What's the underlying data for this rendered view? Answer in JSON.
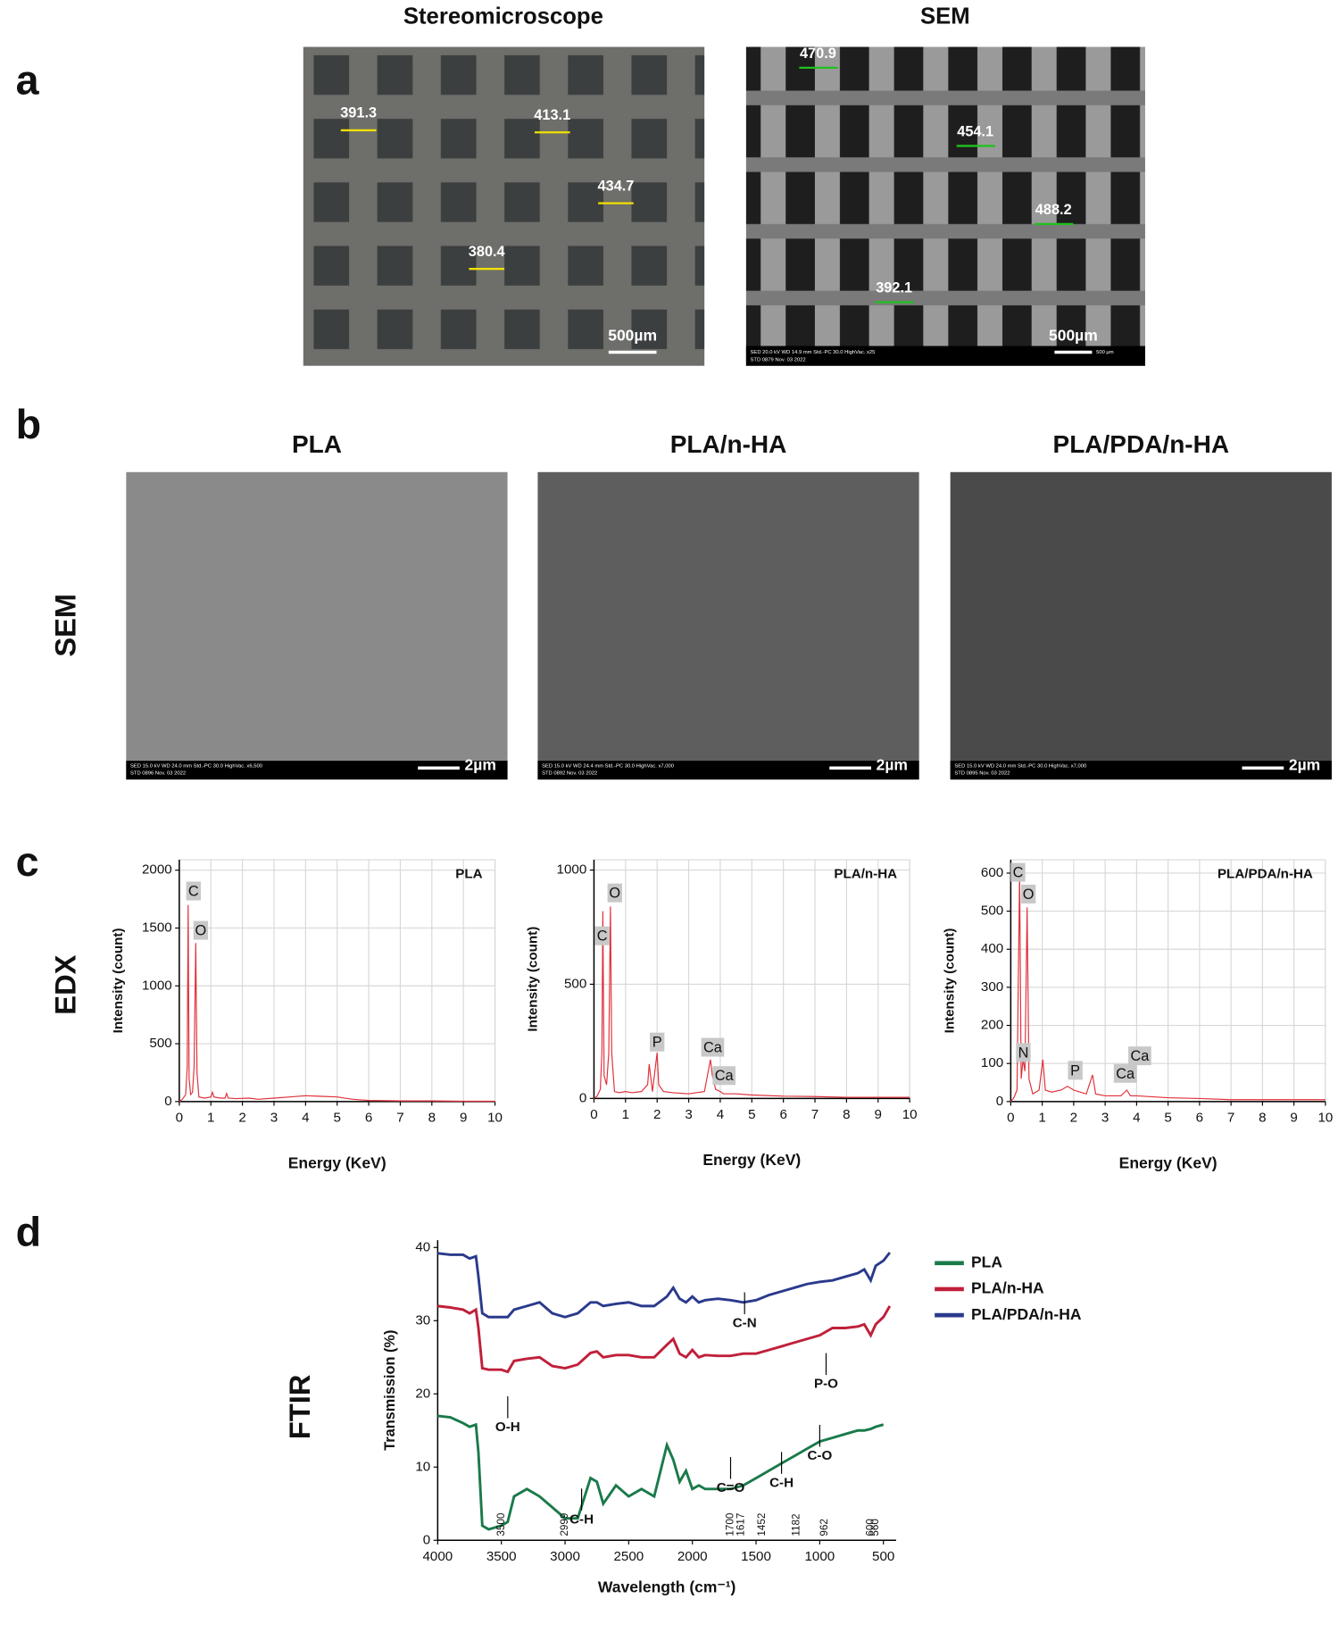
{
  "panel_labels": [
    "a",
    "b",
    "c",
    "d"
  ],
  "stereo": {
    "title": "Stereomicroscope",
    "measurements": [
      391.3,
      413.1,
      434.7,
      380.4
    ],
    "scale_bar": "500µm"
  },
  "sem_a": {
    "title": "SEM",
    "measurements": [
      470.9,
      454.1,
      488.2,
      392.1
    ],
    "scale_bar": "500µm",
    "info": [
      "SED 20.0 kV WD 14.9 mm Std.-PC 30.0 HighVac. x25",
      "STD 0879 Nov. 03 2022"
    ],
    "small_scale": "500 µm"
  },
  "row_b": {
    "row_label": "SEM",
    "columns": [
      {
        "title": "PLA",
        "scale_bar": "2µm",
        "info": [
          "SED 15.0 kV WD 24.0 mm Std.-PC 30.0 HighVac. x6,500",
          "STD 0896 Nov. 03 2022"
        ]
      },
      {
        "title": "PLA/n-HA",
        "scale_bar": "2µm",
        "info": [
          "SED 15.0 kV WD 24.4 mm Std.-PC 30.0 HighVac. x7,000",
          "STD 0892 Nov. 03 2022"
        ]
      },
      {
        "title": "PLA/PDA/n-HA",
        "scale_bar": "2µm",
        "info": [
          "SED 15.0 kV WD 24.0 mm Std.-PC 30.0 HighVac. x7,000",
          "STD 0895 Nov. 03 2022"
        ]
      }
    ]
  },
  "row_c_label": "EDX",
  "row_d_label": "FTIR",
  "chart_data": [
    {
      "type": "line",
      "title": "PLA",
      "x_label": "Energy (KeV)",
      "y_label": "Intensity (count)",
      "color": "#e0303a",
      "grid": true,
      "xlim": [
        0,
        10
      ],
      "ylim": [
        0,
        2090
      ],
      "xticks": [
        0,
        1,
        2,
        3,
        4,
        5,
        6,
        7,
        8,
        9,
        10
      ],
      "yticks": [
        0,
        500,
        1000,
        1500,
        2000
      ],
      "x": [
        0,
        0.1,
        0.2,
        0.25,
        0.28,
        0.31,
        0.36,
        0.42,
        0.47,
        0.52,
        0.56,
        0.62,
        0.8,
        1.0,
        1.05,
        1.1,
        1.3,
        1.45,
        1.5,
        1.55,
        1.8,
        2.2,
        2.5,
        3,
        3.5,
        4,
        4.5,
        5,
        5.5,
        6,
        7,
        8,
        9,
        10
      ],
      "values": [
        0,
        20,
        60,
        300,
        1700,
        200,
        60,
        80,
        300,
        1370,
        250,
        40,
        30,
        40,
        80,
        40,
        30,
        30,
        70,
        30,
        25,
        30,
        20,
        30,
        40,
        50,
        45,
        40,
        20,
        10,
        5,
        5,
        3,
        3
      ],
      "annotations": [
        {
          "text": "C",
          "x": 0.45,
          "y": 1820
        },
        {
          "text": "O",
          "x": 0.68,
          "y": 1480
        }
      ]
    },
    {
      "type": "line",
      "title": "PLA/n-HA",
      "x_label": "Energy (KeV)",
      "y_label": "Intensity (count)",
      "color": "#e0303a",
      "grid": true,
      "xlim": [
        0,
        10
      ],
      "ylim": [
        0,
        1045
      ],
      "xticks": [
        0,
        1,
        2,
        3,
        4,
        5,
        6,
        7,
        8,
        9,
        10
      ],
      "yticks": [
        0,
        500,
        1000
      ],
      "x": [
        0,
        0.1,
        0.2,
        0.25,
        0.28,
        0.32,
        0.4,
        0.47,
        0.52,
        0.56,
        0.65,
        0.8,
        1.0,
        1.2,
        1.5,
        1.7,
        1.75,
        1.85,
        2.0,
        2.05,
        2.2,
        2.5,
        3,
        3.5,
        3.69,
        3.75,
        3.85,
        4.0,
        4.1,
        4.5,
        5,
        6,
        7,
        8,
        9,
        10
      ],
      "values": [
        0,
        10,
        40,
        200,
        820,
        100,
        60,
        200,
        840,
        200,
        30,
        25,
        30,
        25,
        30,
        60,
        150,
        30,
        200,
        60,
        30,
        25,
        20,
        30,
        170,
        100,
        40,
        30,
        20,
        20,
        15,
        10,
        8,
        5,
        5,
        5
      ],
      "annotations": [
        {
          "text": "C",
          "x": 0.26,
          "y": 712
        },
        {
          "text": "O",
          "x": 0.66,
          "y": 900
        },
        {
          "text": "P",
          "x": 2.0,
          "y": 247
        },
        {
          "text": "Ca",
          "x": 3.76,
          "y": 224
        },
        {
          "text": "Ca",
          "x": 4.12,
          "y": 100
        }
      ]
    },
    {
      "type": "line",
      "title": "PLA/PDA/n-HA",
      "x_label": "Energy (KeV)",
      "y_label": "Intensity (count)",
      "color": "#e0303a",
      "grid": true,
      "xlim": [
        0,
        10
      ],
      "ylim": [
        0,
        635
      ],
      "xticks": [
        0,
        1,
        2,
        3,
        4,
        5,
        6,
        7,
        8,
        9,
        10
      ],
      "yticks": [
        0,
        100,
        200,
        300,
        400,
        500,
        600
      ],
      "x": [
        0,
        0.1,
        0.2,
        0.28,
        0.33,
        0.39,
        0.45,
        0.52,
        0.58,
        0.7,
        0.9,
        1.02,
        1.1,
        1.3,
        1.6,
        1.8,
        2.0,
        2.2,
        2.4,
        2.6,
        2.7,
        3,
        3.5,
        3.69,
        3.8,
        4,
        5,
        6,
        7,
        8,
        9,
        10
      ],
      "values": [
        0,
        10,
        30,
        600,
        60,
        110,
        80,
        510,
        60,
        20,
        30,
        110,
        30,
        25,
        30,
        40,
        30,
        25,
        20,
        70,
        20,
        15,
        15,
        30,
        15,
        15,
        10,
        8,
        5,
        5,
        5,
        5
      ],
      "annotations": [
        {
          "text": "C",
          "x": 0.23,
          "y": 602
        },
        {
          "text": "O",
          "x": 0.56,
          "y": 545
        },
        {
          "text": "N",
          "x": 0.4,
          "y": 129
        },
        {
          "text": "P",
          "x": 2.05,
          "y": 82
        },
        {
          "text": "Ca",
          "x": 3.64,
          "y": 74
        },
        {
          "text": "Ca",
          "x": 4.1,
          "y": 120
        }
      ]
    },
    {
      "type": "multiline",
      "x_label": "Wavelength (cm⁻¹)",
      "y_label": "Transmission (%)",
      "grid": false,
      "legend": "right",
      "xlim": [
        4000,
        400
      ],
      "ylim": [
        0,
        41
      ],
      "xticks": [
        4000,
        3500,
        3000,
        2500,
        2000,
        1500,
        1000,
        500
      ],
      "yticks": [
        0,
        10,
        20,
        30,
        40
      ],
      "x": [
        4000,
        3900,
        3800,
        3750,
        3700,
        3680,
        3650,
        3600,
        3500,
        3450,
        3400,
        3300,
        3200,
        3100,
        3000,
        2900,
        2800,
        2750,
        2700,
        2600,
        2500,
        2400,
        2300,
        2200,
        2150,
        2100,
        2050,
        2000,
        1950,
        1900,
        1800,
        1700,
        1600,
        1500,
        1400,
        1300,
        1200,
        1100,
        1000,
        900,
        800,
        700,
        650,
        600,
        560,
        500,
        450
      ],
      "series": [
        {
          "name": "PLA",
          "color": "#1a7a4a",
          "values": [
            17,
            16.8,
            16,
            15.5,
            15.8,
            12,
            2,
            1.5,
            2,
            2.5,
            6,
            7,
            6,
            4.5,
            3,
            3,
            8.5,
            8,
            5,
            7.5,
            6,
            7,
            6,
            13,
            11,
            8,
            9.5,
            7,
            7.5,
            7,
            7,
            7,
            7.5,
            8.5,
            9.5,
            10.5,
            11.5,
            12.5,
            13.5,
            14,
            14.5,
            15,
            15,
            15.2,
            15.5,
            15.8,
            null
          ]
        },
        {
          "name": "PLA/n-HA",
          "color": "#c0203a",
          "values": [
            32,
            31.8,
            31.5,
            31,
            31.5,
            29,
            23.5,
            23.3,
            23.3,
            23,
            24.5,
            24.8,
            25,
            23.8,
            23.5,
            24,
            25.6,
            25.8,
            25,
            25.3,
            25.3,
            25,
            25,
            26.7,
            27.5,
            25.5,
            25,
            26,
            25,
            25.3,
            25.2,
            25.2,
            25.5,
            25.5,
            26,
            26.5,
            27,
            27.5,
            28,
            29,
            29,
            29.2,
            29.5,
            28,
            29.5,
            30.5,
            32
          ]
        },
        {
          "name": "PLA/PDA/n-HA",
          "color": "#2a3a8c",
          "values": [
            39.2,
            39,
            39,
            38.5,
            38.8,
            36,
            31,
            30.5,
            30.5,
            30.5,
            31.5,
            32,
            32.5,
            31,
            30.5,
            31,
            32.5,
            32.5,
            32,
            32.3,
            32.5,
            32,
            32,
            33.3,
            34.5,
            33,
            32.5,
            33.3,
            32.5,
            32.8,
            33,
            32.8,
            32.5,
            32.8,
            33.5,
            34,
            34.5,
            35,
            35.3,
            35.5,
            36,
            36.5,
            37,
            35.5,
            37.5,
            38.2,
            39.3
          ]
        }
      ],
      "annotations": [
        {
          "text": "C-N",
          "x": 1590,
          "y": 29.6
        },
        {
          "text": "P-O",
          "x": 950,
          "y": 21.3
        },
        {
          "text": "O-H",
          "x": 3450,
          "y": 15.4
        },
        {
          "text": "C=O",
          "x": 1700,
          "y": 7.1
        },
        {
          "text": "C-H",
          "x": 2870,
          "y": 2.8
        },
        {
          "text": "C-H",
          "x": 1300,
          "y": 7.8
        },
        {
          "text": "C-O",
          "x": 1000,
          "y": 11.5
        }
      ],
      "wavenumber_marks": [
        3500,
        2999,
        1700,
        1617,
        1452,
        1182,
        962,
        600,
        560
      ]
    }
  ]
}
